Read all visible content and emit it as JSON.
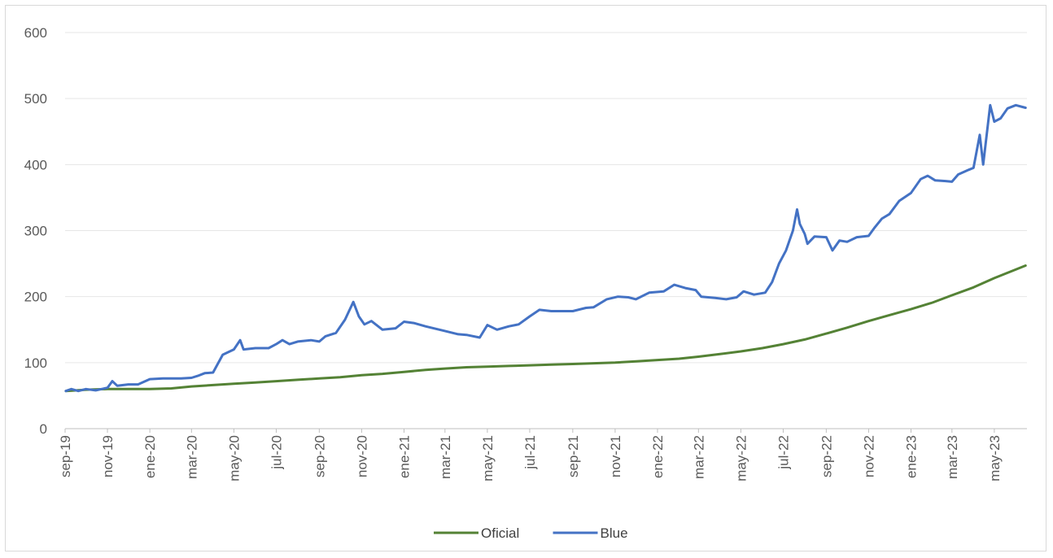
{
  "chart_data": {
    "type": "line",
    "title": "",
    "xlabel": "",
    "ylabel": "",
    "ylim": [
      0,
      600
    ],
    "yticks": [
      0,
      100,
      200,
      300,
      400,
      500,
      600
    ],
    "grid": "horizontal",
    "legend": "bottom",
    "x_tick_labels": [
      "sep-19",
      "nov-19",
      "ene-20",
      "mar-20",
      "may-20",
      "jul-20",
      "sep-20",
      "nov-20",
      "ene-21",
      "mar-21",
      "may-21",
      "jul-21",
      "sep-21",
      "nov-21",
      "ene-22",
      "mar-22",
      "may-22",
      "jul-22",
      "sep-22",
      "nov-22",
      "ene-23",
      "mar-23",
      "may-23"
    ],
    "x_range": [
      "2019-09-01",
      "2023-06-17"
    ],
    "series": [
      {
        "name": "Oficial",
        "color": "#548235",
        "points": [
          [
            "2019-09-02",
            57
          ],
          [
            "2019-10-01",
            59
          ],
          [
            "2019-11-01",
            60
          ],
          [
            "2019-12-01",
            60
          ],
          [
            "2020-01-01",
            60
          ],
          [
            "2020-02-01",
            61
          ],
          [
            "2020-03-01",
            64
          ],
          [
            "2020-04-01",
            66
          ],
          [
            "2020-05-01",
            68
          ],
          [
            "2020-06-01",
            70
          ],
          [
            "2020-07-01",
            72
          ],
          [
            "2020-08-01",
            74
          ],
          [
            "2020-09-01",
            76
          ],
          [
            "2020-10-01",
            78
          ],
          [
            "2020-11-01",
            81
          ],
          [
            "2020-12-01",
            83
          ],
          [
            "2021-01-01",
            86
          ],
          [
            "2021-02-01",
            89
          ],
          [
            "2021-03-01",
            91
          ],
          [
            "2021-04-01",
            93
          ],
          [
            "2021-05-01",
            94
          ],
          [
            "2021-06-01",
            95
          ],
          [
            "2021-07-01",
            96
          ],
          [
            "2021-08-01",
            97
          ],
          [
            "2021-09-01",
            98
          ],
          [
            "2021-10-01",
            99
          ],
          [
            "2021-11-01",
            100
          ],
          [
            "2021-12-01",
            102
          ],
          [
            "2022-01-01",
            104
          ],
          [
            "2022-02-01",
            106
          ],
          [
            "2022-03-01",
            109
          ],
          [
            "2022-04-01",
            113
          ],
          [
            "2022-05-01",
            117
          ],
          [
            "2022-06-01",
            122
          ],
          [
            "2022-07-01",
            128
          ],
          [
            "2022-08-01",
            135
          ],
          [
            "2022-09-01",
            144
          ],
          [
            "2022-10-01",
            153
          ],
          [
            "2022-11-01",
            163
          ],
          [
            "2022-12-01",
            172
          ],
          [
            "2023-01-01",
            181
          ],
          [
            "2023-02-01",
            191
          ],
          [
            "2023-03-01",
            202
          ],
          [
            "2023-04-01",
            214
          ],
          [
            "2023-05-01",
            228
          ],
          [
            "2023-06-15",
            247
          ]
        ]
      },
      {
        "name": "Blue",
        "color": "#4472c4",
        "points": [
          [
            "2019-09-02",
            57
          ],
          [
            "2019-09-10",
            60
          ],
          [
            "2019-09-20",
            57
          ],
          [
            "2019-10-01",
            60
          ],
          [
            "2019-10-15",
            58
          ],
          [
            "2019-11-01",
            62
          ],
          [
            "2019-11-08",
            72
          ],
          [
            "2019-11-15",
            65
          ],
          [
            "2019-12-01",
            67
          ],
          [
            "2019-12-15",
            67
          ],
          [
            "2020-01-01",
            75
          ],
          [
            "2020-01-20",
            76
          ],
          [
            "2020-02-15",
            76
          ],
          [
            "2020-03-01",
            77
          ],
          [
            "2020-03-10",
            80
          ],
          [
            "2020-03-20",
            84
          ],
          [
            "2020-04-01",
            85
          ],
          [
            "2020-04-15",
            112
          ],
          [
            "2020-05-01",
            120
          ],
          [
            "2020-05-10",
            134
          ],
          [
            "2020-05-15",
            120
          ],
          [
            "2020-06-01",
            122
          ],
          [
            "2020-06-20",
            122
          ],
          [
            "2020-07-01",
            128
          ],
          [
            "2020-07-10",
            134
          ],
          [
            "2020-07-20",
            128
          ],
          [
            "2020-08-01",
            132
          ],
          [
            "2020-08-20",
            134
          ],
          [
            "2020-09-01",
            132
          ],
          [
            "2020-09-10",
            140
          ],
          [
            "2020-09-25",
            145
          ],
          [
            "2020-10-08",
            165
          ],
          [
            "2020-10-20",
            192
          ],
          [
            "2020-10-28",
            170
          ],
          [
            "2020-11-05",
            158
          ],
          [
            "2020-11-15",
            163
          ],
          [
            "2020-12-01",
            150
          ],
          [
            "2020-12-20",
            152
          ],
          [
            "2021-01-01",
            162
          ],
          [
            "2021-01-15",
            160
          ],
          [
            "2021-02-01",
            155
          ],
          [
            "2021-03-01",
            148
          ],
          [
            "2021-03-20",
            143
          ],
          [
            "2021-04-01",
            142
          ],
          [
            "2021-04-20",
            138
          ],
          [
            "2021-05-01",
            157
          ],
          [
            "2021-05-15",
            150
          ],
          [
            "2021-06-01",
            155
          ],
          [
            "2021-06-15",
            158
          ],
          [
            "2021-07-01",
            170
          ],
          [
            "2021-07-15",
            180
          ],
          [
            "2021-08-01",
            178
          ],
          [
            "2021-08-20",
            178
          ],
          [
            "2021-09-01",
            178
          ],
          [
            "2021-09-20",
            183
          ],
          [
            "2021-10-01",
            184
          ],
          [
            "2021-10-20",
            196
          ],
          [
            "2021-11-05",
            200
          ],
          [
            "2021-11-20",
            199
          ],
          [
            "2021-12-01",
            196
          ],
          [
            "2021-12-20",
            206
          ],
          [
            "2022-01-10",
            208
          ],
          [
            "2022-01-25",
            218
          ],
          [
            "2022-02-10",
            213
          ],
          [
            "2022-02-25",
            210
          ],
          [
            "2022-03-05",
            200
          ],
          [
            "2022-03-25",
            198
          ],
          [
            "2022-04-10",
            196
          ],
          [
            "2022-04-25",
            199
          ],
          [
            "2022-05-05",
            208
          ],
          [
            "2022-05-20",
            203
          ],
          [
            "2022-06-05",
            206
          ],
          [
            "2022-06-15",
            222
          ],
          [
            "2022-06-25",
            250
          ],
          [
            "2022-07-05",
            270
          ],
          [
            "2022-07-15",
            300
          ],
          [
            "2022-07-21",
            332
          ],
          [
            "2022-07-25",
            310
          ],
          [
            "2022-08-01",
            295
          ],
          [
            "2022-08-05",
            280
          ],
          [
            "2022-08-15",
            291
          ],
          [
            "2022-09-01",
            290
          ],
          [
            "2022-09-10",
            270
          ],
          [
            "2022-09-20",
            285
          ],
          [
            "2022-10-01",
            283
          ],
          [
            "2022-10-15",
            290
          ],
          [
            "2022-11-01",
            292
          ],
          [
            "2022-11-10",
            305
          ],
          [
            "2022-11-20",
            318
          ],
          [
            "2022-12-01",
            325
          ],
          [
            "2022-12-15",
            345
          ],
          [
            "2023-01-01",
            357
          ],
          [
            "2023-01-15",
            378
          ],
          [
            "2023-01-25",
            383
          ],
          [
            "2023-02-05",
            376
          ],
          [
            "2023-02-20",
            375
          ],
          [
            "2023-03-01",
            374
          ],
          [
            "2023-03-10",
            385
          ],
          [
            "2023-03-25",
            392
          ],
          [
            "2023-04-01",
            395
          ],
          [
            "2023-04-10",
            445
          ],
          [
            "2023-04-15",
            400
          ],
          [
            "2023-04-25",
            490
          ],
          [
            "2023-05-01",
            465
          ],
          [
            "2023-05-10",
            470
          ],
          [
            "2023-05-20",
            485
          ],
          [
            "2023-06-01",
            490
          ],
          [
            "2023-06-15",
            486
          ]
        ]
      }
    ]
  }
}
